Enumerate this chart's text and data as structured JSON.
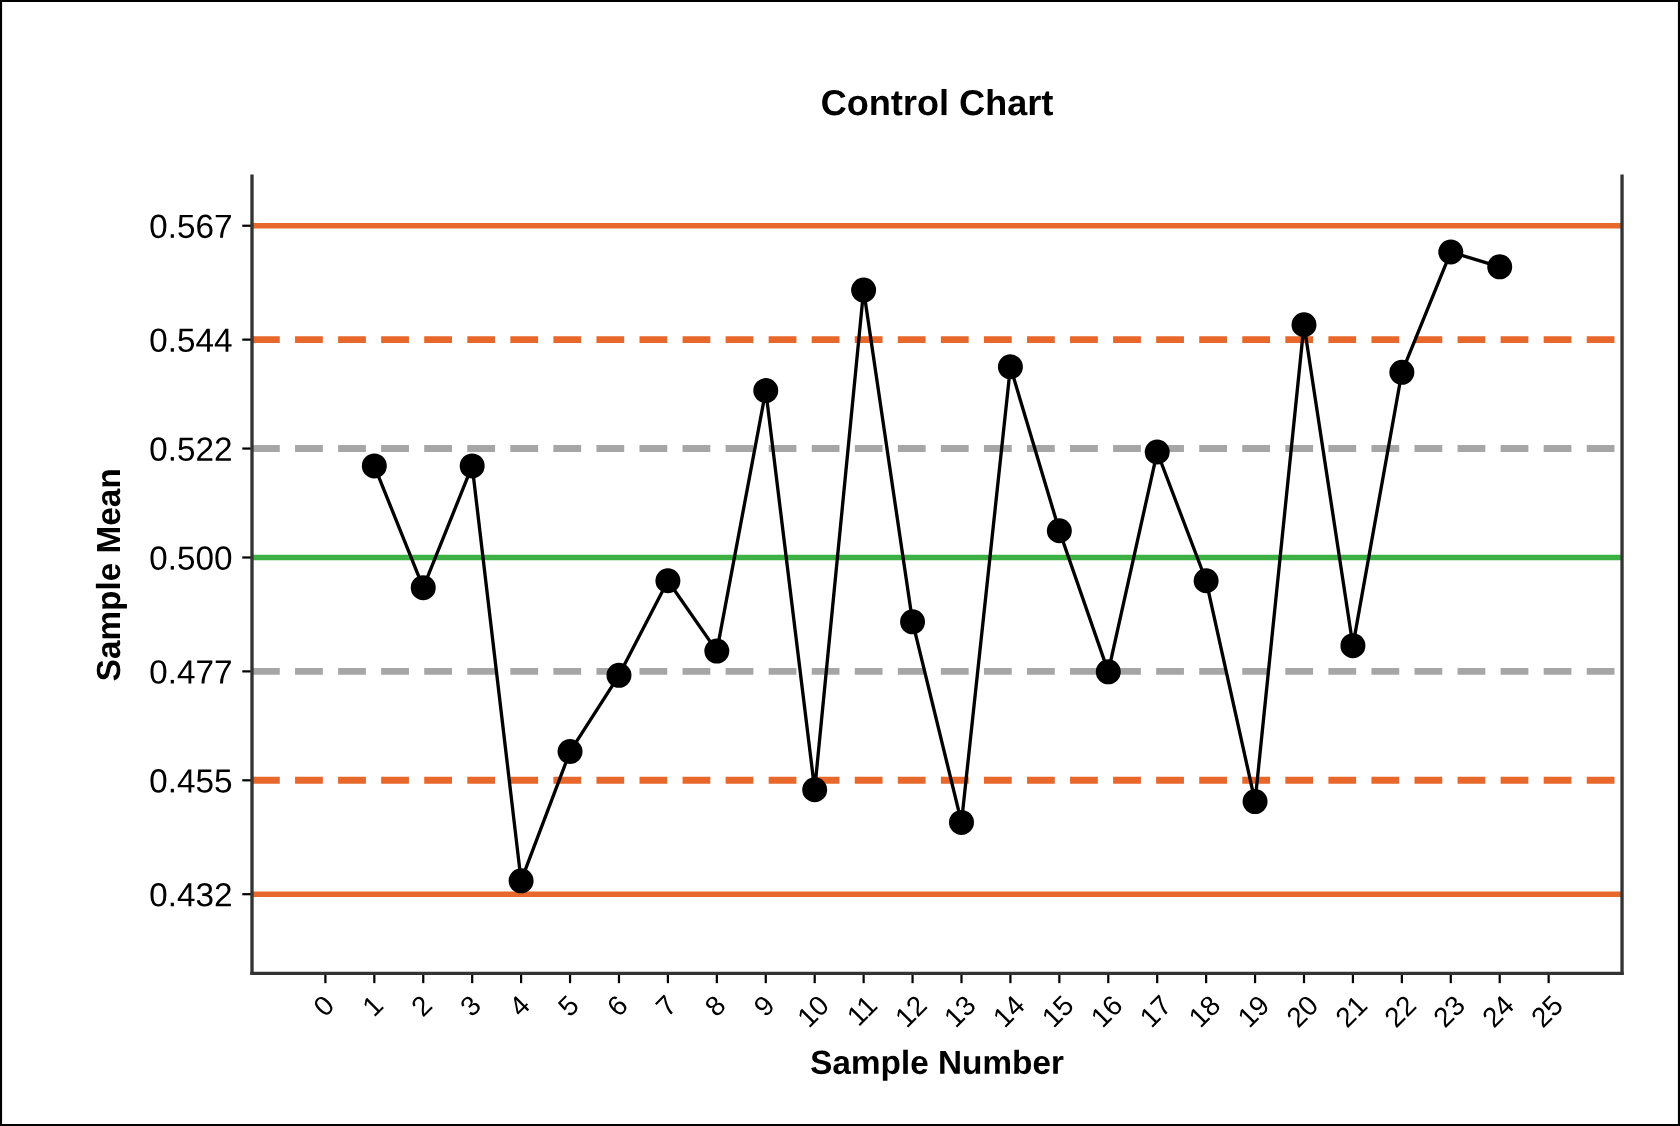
{
  "chart_data": {
    "type": "line",
    "title": "Control Chart",
    "xlabel": "Sample Number",
    "ylabel": "Sample Mean",
    "x": [
      1,
      2,
      3,
      4,
      5,
      6,
      7,
      8,
      9,
      10,
      11,
      12,
      13,
      14,
      15,
      16,
      17,
      18,
      19,
      20,
      21,
      22,
      23,
      24
    ],
    "series": [
      {
        "color": "#000000",
        "values": [
          0.5185,
          0.4939,
          0.5185,
          0.4347,
          0.4608,
          0.4762,
          0.4953,
          0.4811,
          0.5337,
          0.4531,
          0.554,
          0.487,
          0.4465,
          0.5385,
          0.5054,
          0.4769,
          0.5213,
          0.4953,
          0.4507,
          0.547,
          0.4822,
          0.5374,
          0.5617,
          0.5587
        ]
      }
    ],
    "marker": "circle",
    "line_style": "solid",
    "grid": false,
    "legend": false,
    "xlim": [
      -1.5,
      26.5
    ],
    "xticks": [
      0,
      1,
      2,
      3,
      4,
      5,
      6,
      7,
      8,
      9,
      10,
      11,
      12,
      13,
      14,
      15,
      16,
      17,
      18,
      19,
      20,
      21,
      22,
      23,
      24,
      25
    ],
    "ylim": [
      0.416,
      0.577
    ],
    "yticks": [
      0.432,
      0.455,
      0.477,
      {
        "value": 0.5,
        "label": "0.500"
      },
      0.522,
      0.544,
      0.567
    ],
    "ref_lines": [
      {
        "axis": "y",
        "value": 0.567,
        "color": "#e8672a",
        "line_style": "solid"
      },
      {
        "axis": "y",
        "value": 0.544,
        "color": "#e8672a",
        "line_style": "dashed"
      },
      {
        "axis": "y",
        "value": 0.522,
        "color": "#a6a6a6",
        "line_style": "dashed"
      },
      {
        "axis": "y",
        "value": 0.5,
        "color": "#3cb043",
        "line_style": "solid"
      },
      {
        "axis": "y",
        "value": 0.477,
        "color": "#a6a6a6",
        "line_style": "dashed"
      },
      {
        "axis": "y",
        "value": 0.455,
        "color": "#e8672a",
        "line_style": "dashed"
      },
      {
        "axis": "y",
        "value": 0.432,
        "color": "#e8672a",
        "line_style": "solid"
      }
    ]
  }
}
